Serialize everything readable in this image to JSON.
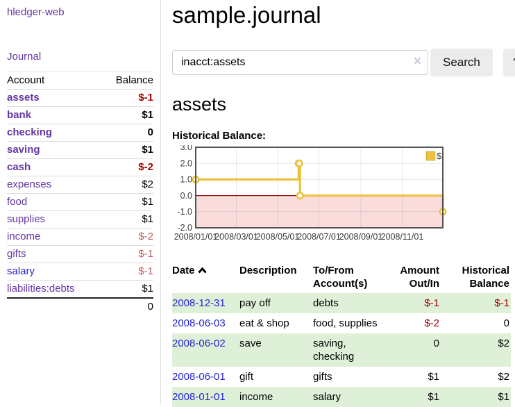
{
  "sidebar": {
    "app_title": "hledger-web",
    "journal_label": "Journal",
    "accounts_table": {
      "headers": {
        "account": "Account",
        "balance": "Balance"
      },
      "rows": [
        {
          "name": "assets",
          "balance": "$-1",
          "depth": 1,
          "bold": true,
          "neg": "strong"
        },
        {
          "name": "bank",
          "balance": "$1",
          "depth": 2,
          "bold": true,
          "neg": null
        },
        {
          "name": "checking",
          "balance": "0",
          "depth": 3,
          "bold": true,
          "neg": null
        },
        {
          "name": "saving",
          "balance": "$1",
          "depth": 3,
          "bold": true,
          "neg": null
        },
        {
          "name": "cash",
          "balance": "$-2",
          "depth": 2,
          "bold": true,
          "neg": "strong"
        },
        {
          "name": "expenses",
          "balance": "$2",
          "depth": 1,
          "bold": false,
          "neg": null
        },
        {
          "name": "food",
          "balance": "$1",
          "depth": 2,
          "bold": false,
          "neg": null
        },
        {
          "name": "supplies",
          "balance": "$1",
          "depth": 2,
          "bold": false,
          "neg": null
        },
        {
          "name": "income",
          "balance": "$-2",
          "depth": 1,
          "bold": false,
          "neg": "weak"
        },
        {
          "name": "gifts",
          "balance": "$-1",
          "depth": 2,
          "bold": false,
          "neg": "weak"
        },
        {
          "name": "salary",
          "balance": "$-1",
          "depth": 2,
          "bold": false,
          "neg": "weak",
          "link_color": "blue"
        },
        {
          "name": "liabilities:debts",
          "balance": "$1",
          "depth": 1,
          "bold": false,
          "neg": null
        }
      ],
      "total": "0"
    }
  },
  "main": {
    "title": "sample.journal",
    "search": {
      "value": "inacct:assets",
      "clear_icon": "×",
      "search_label": "Search",
      "help_label": "?"
    },
    "account_heading": "assets",
    "chart_label": "Historical Balance:",
    "register_table": {
      "headers": {
        "date": "Date",
        "description": "Description",
        "accounts": "To/From Account(s)",
        "amount": "Amount Out/In",
        "balance": "Historical Balance"
      },
      "rows": [
        {
          "date": "2008-12-31",
          "description": "pay off",
          "accounts": "debts",
          "amount": "$-1",
          "balance": "$-1",
          "amount_neg": true,
          "balance_neg": true
        },
        {
          "date": "2008-06-03",
          "description": "eat & shop",
          "accounts": "food, supplies",
          "amount": "$-2",
          "balance": "0",
          "amount_neg": true,
          "balance_neg": false
        },
        {
          "date": "2008-06-02",
          "description": "save",
          "accounts": "saving, checking",
          "amount": "0",
          "balance": "$2",
          "amount_neg": false,
          "balance_neg": false
        },
        {
          "date": "2008-06-01",
          "description": "gift",
          "accounts": "gifts",
          "amount": "$1",
          "balance": "$2",
          "amount_neg": false,
          "balance_neg": false
        },
        {
          "date": "2008-01-01",
          "description": "income",
          "accounts": "salary",
          "amount": "$1",
          "balance": "$1",
          "amount_neg": false,
          "balance_neg": false
        }
      ]
    }
  },
  "chart_data": {
    "type": "line",
    "step": true,
    "title": "Historical Balance:",
    "series": [
      {
        "name": "$",
        "color": "#edc240",
        "points": [
          [
            "2008-01-01",
            1
          ],
          [
            "2008-06-01",
            2
          ],
          [
            "2008-06-02",
            2
          ],
          [
            "2008-06-03",
            0
          ],
          [
            "2008-12-31",
            -1
          ]
        ]
      }
    ],
    "x_range": [
      "2008-01-01",
      "2008-12-31"
    ],
    "x_ticks": [
      "2008/01/01",
      "2008/03/01",
      "2008/05/01",
      "2008/07/01",
      "2008/09/01",
      "2008/11/01"
    ],
    "y_ticks": [
      3.0,
      2.0,
      1.0,
      0.0,
      -1.0,
      -2.0
    ],
    "ylim": [
      -2.0,
      3.0
    ],
    "grid": true,
    "legend_position": "top-right",
    "legend_label": "$",
    "negative_region_color": "#fadcdc",
    "zero_line_color": "#991111",
    "grid_color": "rgba(0,0,0,0.09)",
    "border_color": "#545454"
  },
  "colors": {
    "link_purple": "#6336a6",
    "link_blue": "#2525d6",
    "negative_strong": "#a40000",
    "negative_weak": "#c05c5c",
    "row_green": "#dff0d8",
    "button_bg": "#ececec",
    "series_gold": "#edc240"
  }
}
